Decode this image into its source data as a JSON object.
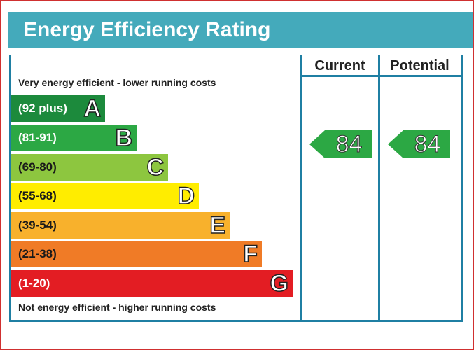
{
  "title": "Energy Efficiency Rating",
  "columns": {
    "current": "Current",
    "potential": "Potential"
  },
  "top_caption": "Very energy efficient - lower running costs",
  "bottom_caption": "Not energy efficient - higher running costs",
  "bands": [
    {
      "letter": "A",
      "range": "(92 plus)",
      "color": "#1c8a3c"
    },
    {
      "letter": "B",
      "range": "(81-91)",
      "color": "#2ca844"
    },
    {
      "letter": "C",
      "range": "(69-80)",
      "color": "#8dc63f"
    },
    {
      "letter": "D",
      "range": "(55-68)",
      "color": "#ffed00"
    },
    {
      "letter": "E",
      "range": "(39-54)",
      "color": "#f8b12c"
    },
    {
      "letter": "F",
      "range": "(21-38)",
      "color": "#f07b26"
    },
    {
      "letter": "G",
      "range": "(1-20)",
      "color": "#e31d23"
    }
  ],
  "current_rating": {
    "value": "84",
    "band": "B",
    "color": "#2ca844"
  },
  "potential_rating": {
    "value": "84",
    "band": "B",
    "color": "#2ca844"
  },
  "colors": {
    "header": "#44aabb",
    "border": "#1f7fa3"
  }
}
